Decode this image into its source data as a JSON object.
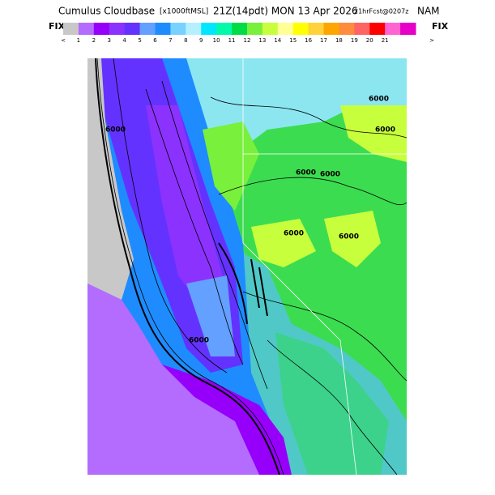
{
  "header": {
    "title": [
      "Cumulus Cloudbase",
      "[x1000ftMSL]",
      "21Z(14pdt) MON 13 Apr 2026",
      "21hrFcst@0207z",
      "NAM"
    ]
  },
  "colorbar": {
    "fix_left": "FIX",
    "fix_right": "FIX",
    "colors": [
      "#c8c8c8",
      "#b46cff",
      "#9600fa",
      "#8c32ff",
      "#6432ff",
      "#64a0ff",
      "#1e8cff",
      "#78d2ff",
      "#b4f0ff",
      "#00e6ff",
      "#00faaa",
      "#00dc46",
      "#78f03c",
      "#c8ff3c",
      "#ffff96",
      "#ffff00",
      "#ffd23c",
      "#ffa500",
      "#ff8c3c",
      "#ff6464",
      "#ff0000",
      "#ff64d2",
      "#e600c8"
    ],
    "labels": [
      "<",
      "1",
      "2",
      "3",
      "4",
      "5",
      "6",
      "7",
      "8",
      "9",
      "10",
      "11",
      "12",
      "13",
      "14",
      "15",
      "16",
      "17",
      "18",
      "19",
      "20",
      "21",
      ">"
    ]
  },
  "map": {
    "contour_labels": [
      "6000",
      "6000",
      "6000",
      "6000",
      "6000",
      "6000",
      "6000",
      "6000"
    ]
  }
}
